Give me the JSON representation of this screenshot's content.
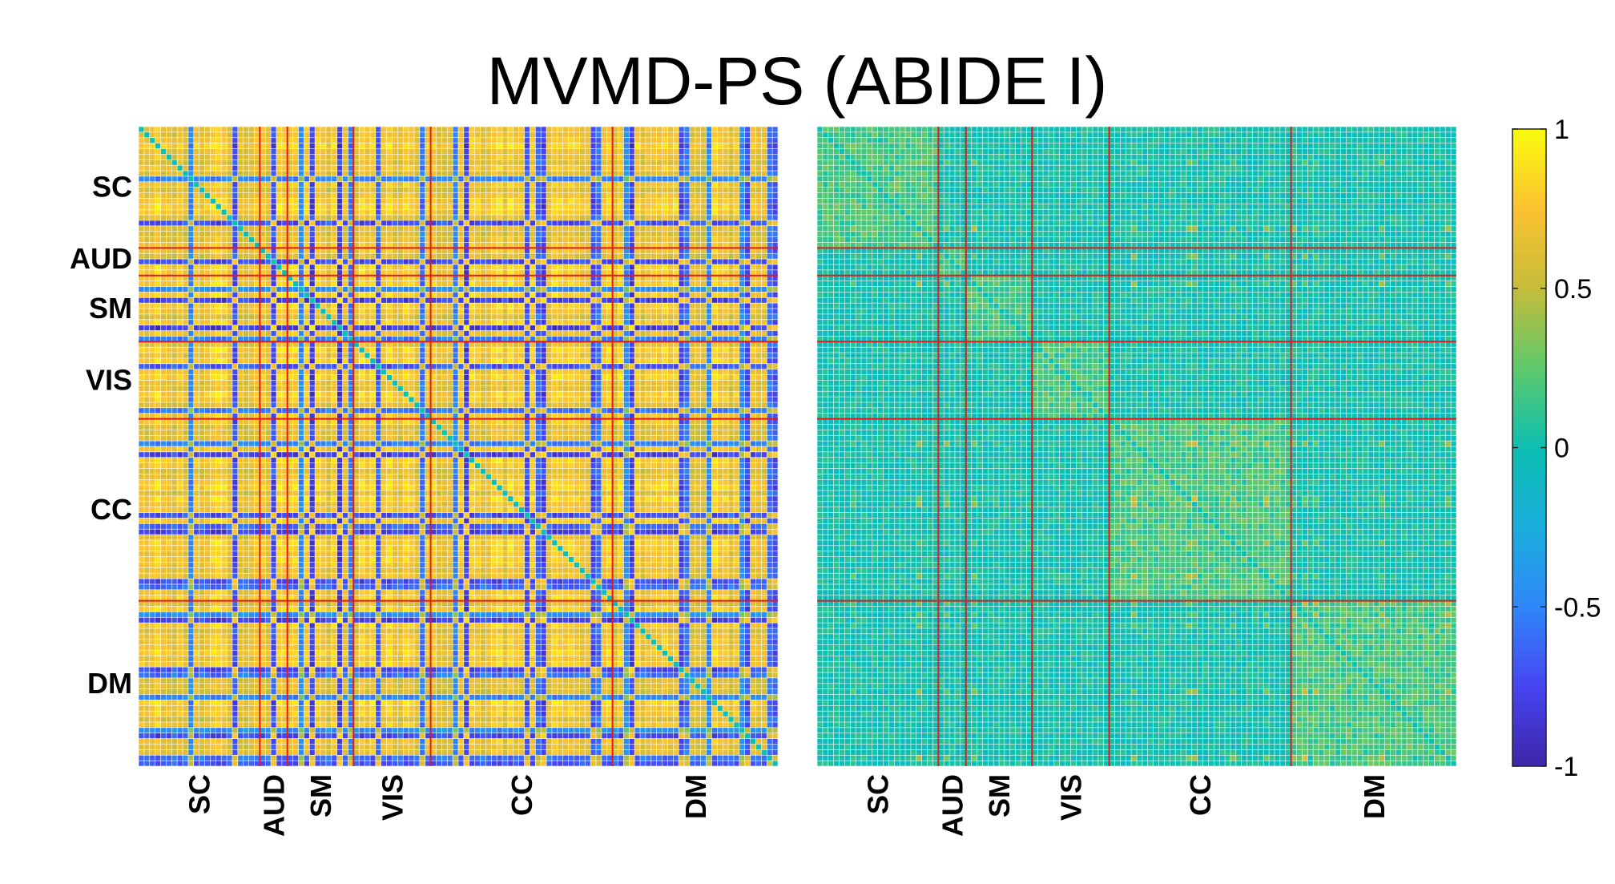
{
  "title": "MVMD-PS (ABIDE I)",
  "chart_data": [
    {
      "type": "heatmap",
      "panel": "left",
      "matrix_size": 116,
      "networks": [
        "SC",
        "AUD",
        "SM",
        "VIS",
        "CC",
        "DM"
      ],
      "network_boundaries": [
        22,
        27,
        39,
        53,
        86,
        116
      ],
      "row_labels": [
        "SC",
        "AUD",
        "SM",
        "VIS",
        "CC",
        "DM"
      ],
      "col_labels": [
        "SC",
        "AUD",
        "SM",
        "VIS",
        "CC",
        "DM"
      ],
      "separator_color": "#e31a1c",
      "value_range": [
        -1,
        1
      ]
    },
    {
      "type": "heatmap",
      "panel": "right",
      "matrix_size": 116,
      "networks": [
        "SC",
        "AUD",
        "SM",
        "VIS",
        "CC",
        "DM"
      ],
      "network_boundaries": [
        22,
        27,
        39,
        53,
        86,
        116
      ],
      "col_labels": [
        "SC",
        "AUD",
        "SM",
        "VIS",
        "CC",
        "DM"
      ],
      "separator_color": "#e31a1c",
      "value_range": [
        -1,
        1
      ]
    }
  ],
  "colorbar": {
    "colormap": "parula",
    "ticks": [
      "1",
      "0.5",
      "0",
      "-0.5",
      "-1"
    ],
    "tick_values": [
      1,
      0.5,
      0,
      -0.5,
      -1
    ],
    "range": [
      -1,
      1
    ]
  }
}
